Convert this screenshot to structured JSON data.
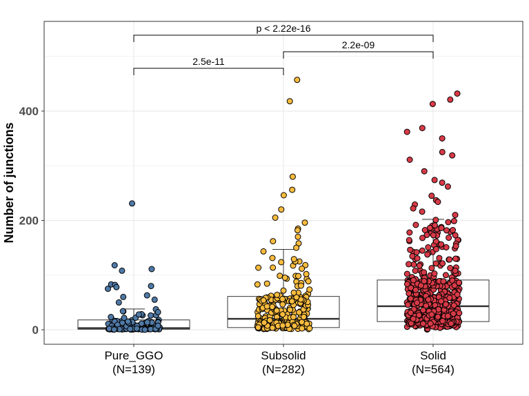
{
  "chart_data": {
    "type": "boxplot",
    "ylabel": "Number of junctions",
    "ylim": [
      -25,
      570
    ],
    "y_ticks": [
      0,
      200,
      400
    ],
    "grid": true,
    "categories": [
      {
        "name": "Pure_GGO",
        "n_label": "(N=139)",
        "color": "#4f79a6",
        "box": {
          "min": 0,
          "q1": 1,
          "median": 3,
          "q3": 18,
          "max": 38
        }
      },
      {
        "name": "Subsolid",
        "n_label": "(N=282)",
        "color": "#fbbc3e",
        "box": {
          "min": 0,
          "q1": 4,
          "median": 20,
          "q3": 61,
          "max": 147
        }
      },
      {
        "name": "Solid",
        "n_label": "(N=564)",
        "color": "#d83a47",
        "box": {
          "min": 0,
          "q1": 15,
          "median": 43,
          "q3": 91,
          "max": 202
        }
      }
    ],
    "outliers": [
      {
        "group": 0,
        "values": [
          231,
          118,
          111,
          108,
          83,
          82,
          80,
          78,
          75,
          63,
          60,
          55,
          50
        ]
      },
      {
        "group": 1,
        "values": [
          457,
          418,
          280,
          256,
          246,
          220,
          205,
          196,
          185,
          182,
          170,
          162,
          158,
          150
        ]
      },
      {
        "group": 2,
        "values": [
          432,
          421,
          413,
          369,
          362,
          350,
          325,
          319,
          311,
          290,
          274,
          269,
          262,
          245,
          237,
          234,
          229,
          222,
          216,
          210
        ]
      }
    ],
    "comparisons": [
      {
        "from": 0,
        "to": 1,
        "label": "2.5e-11",
        "level": 1
      },
      {
        "from": 1,
        "to": 2,
        "label": "2.2e-09",
        "level": 2
      },
      {
        "from": 0,
        "to": 2,
        "label": "p < 2.22e-16",
        "level": 3
      }
    ]
  }
}
